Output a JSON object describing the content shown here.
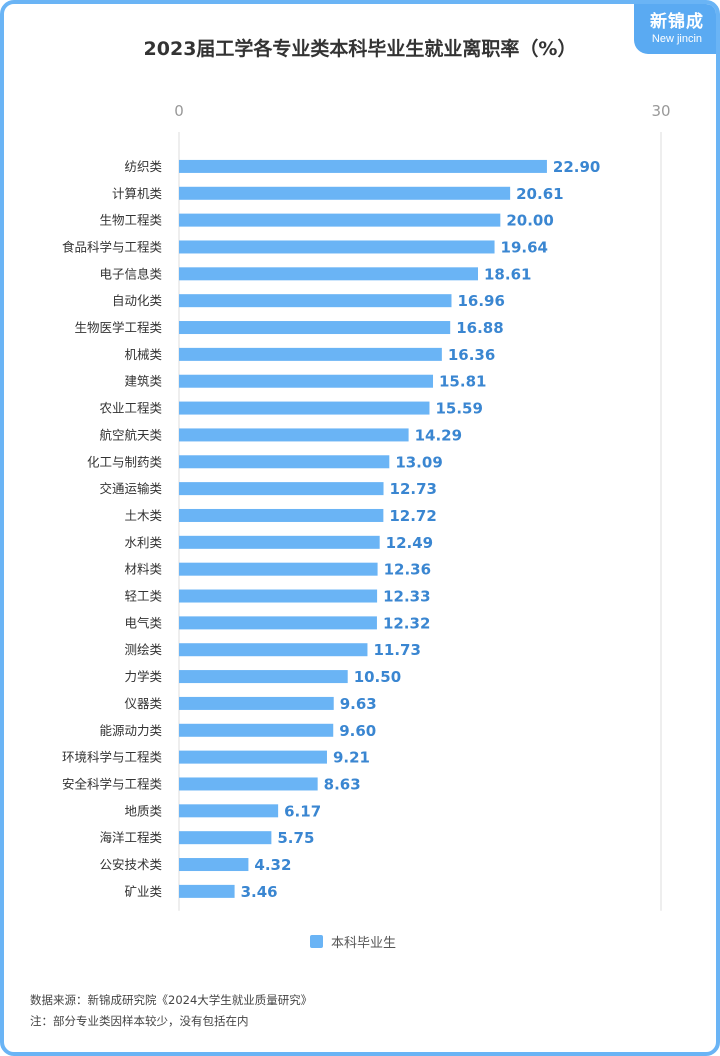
{
  "title": "2023届工学各专业类本科毕业生就业离职率（%）",
  "logo": {
    "cn": "新锦成",
    "en": "New jincin"
  },
  "legend": "本科毕业生",
  "footer": {
    "source": "数据来源：新锦成研究院《2024大学生就业质量研究》",
    "note": "注：部分专业类因样本较少，没有包括在内"
  },
  "colors": {
    "bar": "#6ab4f5",
    "value": "#3a86d1",
    "border": "#6ab4f5"
  },
  "chart_data": {
    "type": "bar",
    "orientation": "horizontal",
    "title": "2023届工学各专业类本科毕业生就业离职率（%）",
    "xlim": [
      0,
      30
    ],
    "ticks": [
      "0",
      "30"
    ],
    "grid": true,
    "legend_position": "bottom",
    "categories": [
      "纺织类",
      "计算机类",
      "生物工程类",
      "食品科学与工程类",
      "电子信息类",
      "自动化类",
      "生物医学工程类",
      "机械类",
      "建筑类",
      "农业工程类",
      "航空航天类",
      "化工与制药类",
      "交通运输类",
      "土木类",
      "水利类",
      "材料类",
      "轻工类",
      "电气类",
      "测绘类",
      "力学类",
      "仪器类",
      "能源动力类",
      "环境科学与工程类",
      "安全科学与工程类",
      "地质类",
      "海洋工程类",
      "公安技术类",
      "矿业类"
    ],
    "series": [
      {
        "name": "本科毕业生",
        "values": [
          22.9,
          20.61,
          20.0,
          19.64,
          18.61,
          16.96,
          16.88,
          16.36,
          15.81,
          15.59,
          14.29,
          13.09,
          12.73,
          12.72,
          12.49,
          12.36,
          12.33,
          12.32,
          11.73,
          10.5,
          9.63,
          9.6,
          9.21,
          8.63,
          6.17,
          5.75,
          4.32,
          3.46
        ]
      }
    ]
  }
}
